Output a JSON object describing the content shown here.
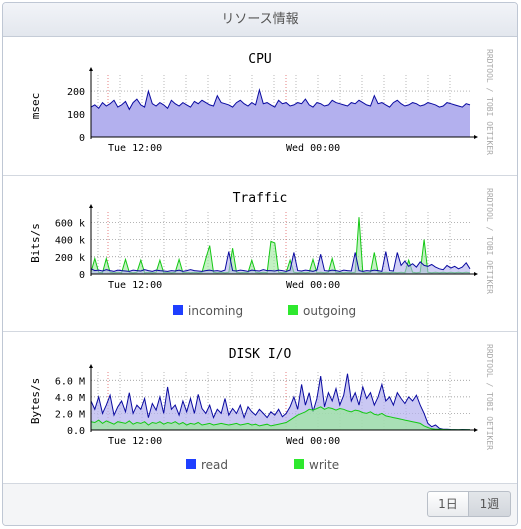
{
  "panel": {
    "title": "リソース情報"
  },
  "watermark": "RRDTOOL / TOBI OETIKER",
  "charts": [
    {
      "id": "cpu",
      "title": "CPU",
      "ylabel": "msec",
      "yticks": [
        "0",
        "100",
        "200"
      ],
      "xticks": [
        "Tue 12:00",
        "Wed 00:00"
      ],
      "legend": []
    },
    {
      "id": "traffic",
      "title": "Traffic",
      "ylabel": "Bits/s",
      "yticks": [
        "0",
        "200 k",
        "400 k",
        "600 k"
      ],
      "xticks": [
        "Tue 12:00",
        "Wed 00:00"
      ],
      "legend": [
        "incoming",
        "outgoing"
      ]
    },
    {
      "id": "disk",
      "title": "DISK I/O",
      "ylabel": "Bytes/s",
      "yticks": [
        "0.0",
        "2.0 M",
        "4.0 M",
        "6.0 M"
      ],
      "xticks": [
        "Tue 12:00",
        "Wed 00:00"
      ],
      "legend": [
        "read",
        "write"
      ]
    }
  ],
  "buttons": {
    "day": "1日",
    "week": "1週",
    "selected": "week"
  },
  "colors": {
    "incoming": "#1f3fff",
    "outgoing": "#2ee82e",
    "read": "#1f3fff",
    "write": "#2ee82e",
    "area": "#b3b0ee",
    "line": "#0a0aa0"
  },
  "chart_data": [
    {
      "type": "area",
      "title": "CPU",
      "ylabel": "msec",
      "ylim": [
        0,
        270
      ],
      "x_ticks": [
        "Tue 12:00",
        "Wed 00:00"
      ],
      "series": [
        {
          "values": [
            130,
            140,
            125,
            150,
            135,
            145,
            160,
            130,
            140,
            155,
            120,
            150,
            165,
            140,
            130,
            200,
            145,
            135,
            150,
            140,
            125,
            160,
            145,
            135,
            150,
            140,
            130,
            155,
            145,
            160,
            150,
            140,
            135,
            180,
            150,
            145,
            140,
            130,
            150,
            160,
            145,
            135,
            150,
            140,
            205,
            145,
            150,
            140,
            130,
            160,
            145,
            150,
            135,
            140,
            150,
            145,
            165,
            140,
            130,
            150,
            145,
            135,
            140,
            160,
            150,
            145,
            140,
            135,
            150,
            145,
            160,
            150,
            140,
            135,
            180,
            145,
            150,
            140,
            130,
            150,
            160,
            145,
            135,
            140,
            150,
            145,
            135,
            140,
            150,
            145,
            140,
            130,
            135,
            150,
            145,
            140,
            135,
            130,
            145,
            140
          ]
        }
      ]
    },
    {
      "type": "line",
      "title": "Traffic",
      "ylabel": "Bits/s",
      "ylim": [
        0,
        720000
      ],
      "x_ticks": [
        "Tue 12:00",
        "Wed 00:00"
      ],
      "series": [
        {
          "name": "incoming",
          "values": [
            60000,
            40000,
            45000,
            35000,
            50000,
            40000,
            30000,
            45000,
            40000,
            35000,
            30000,
            45000,
            40000,
            35000,
            50000,
            40000,
            30000,
            45000,
            40000,
            35000,
            30000,
            40000,
            35000,
            45000,
            30000,
            40000,
            50000,
            40000,
            35000,
            30000,
            40000,
            45000,
            35000,
            40000,
            30000,
            45000,
            260000,
            40000,
            35000,
            45000,
            40000,
            30000,
            45000,
            40000,
            35000,
            50000,
            40000,
            40000,
            35000,
            45000,
            40000,
            30000,
            45000,
            250000,
            40000,
            35000,
            45000,
            40000,
            30000,
            45000,
            230000,
            40000,
            35000,
            45000,
            40000,
            30000,
            45000,
            40000,
            35000,
            250000,
            40000,
            30000,
            40000,
            35000,
            45000,
            40000,
            30000,
            260000,
            40000,
            35000,
            250000,
            100000,
            150000,
            90000,
            120000,
            80000,
            140000,
            100000,
            90000,
            110000,
            80000,
            60000,
            50000,
            100000,
            70000,
            90000,
            60000,
            80000,
            130000,
            60000
          ]
        },
        {
          "name": "outgoing",
          "values": [
            20000,
            180000,
            20000,
            15000,
            180000,
            20000,
            15000,
            20000,
            15000,
            170000,
            20000,
            15000,
            20000,
            160000,
            15000,
            20000,
            15000,
            20000,
            160000,
            15000,
            20000,
            15000,
            20000,
            170000,
            15000,
            20000,
            15000,
            20000,
            15000,
            20000,
            180000,
            330000,
            20000,
            15000,
            20000,
            15000,
            20000,
            300000,
            20000,
            15000,
            20000,
            15000,
            160000,
            20000,
            15000,
            20000,
            15000,
            380000,
            360000,
            20000,
            15000,
            20000,
            160000,
            20000,
            15000,
            20000,
            15000,
            20000,
            170000,
            15000,
            20000,
            15000,
            20000,
            180000,
            15000,
            20000,
            15000,
            20000,
            15000,
            20000,
            660000,
            20000,
            15000,
            20000,
            250000,
            20000,
            15000,
            20000,
            15000,
            20000,
            15000,
            20000,
            15000,
            160000,
            20000,
            15000,
            20000,
            400000,
            20000,
            15000,
            20000,
            15000,
            20000,
            15000,
            20000,
            15000,
            20000,
            15000,
            20000,
            15000
          ]
        }
      ]
    },
    {
      "type": "line",
      "title": "DISK I/O",
      "ylabel": "Bytes/s",
      "ylim": [
        0,
        7000000
      ],
      "x_ticks": [
        "Tue 12:00",
        "Wed 00:00"
      ],
      "series": [
        {
          "name": "read",
          "values": [
            3500000,
            2500000,
            4000000,
            2000000,
            3000000,
            4200000,
            1800000,
            2800000,
            3500000,
            2200000,
            4500000,
            2000000,
            3000000,
            2500000,
            3800000,
            1500000,
            3200000,
            2400000,
            4000000,
            2000000,
            5200000,
            2500000,
            3000000,
            1800000,
            3500000,
            2200000,
            3800000,
            2000000,
            4300000,
            2600000,
            2000000,
            3000000,
            1500000,
            2500000,
            2000000,
            3800000,
            1800000,
            2600000,
            2000000,
            3000000,
            1500000,
            2800000,
            2200000,
            1800000,
            2500000,
            2000000,
            1500000,
            2200000,
            1800000,
            2500000,
            1600000,
            2000000,
            2800000,
            4000000,
            2500000,
            5500000,
            3000000,
            4500000,
            2200000,
            3800000,
            6500000,
            2800000,
            4500000,
            3500000,
            5000000,
            3000000,
            4200000,
            6800000,
            3500000,
            4500000,
            3000000,
            5200000,
            3800000,
            4500000,
            3000000,
            4000000,
            5500000,
            3500000,
            4000000,
            3000000,
            4500000,
            3800000,
            3200000,
            4000000,
            3500000,
            4200000,
            3000000,
            2000000,
            800000,
            400000,
            600000,
            200000,
            100000,
            80000,
            60000,
            50000,
            40000,
            60000,
            50000,
            40000
          ]
        },
        {
          "name": "write",
          "values": [
            1000000,
            900000,
            1200000,
            800000,
            1100000,
            900000,
            700000,
            1000000,
            900000,
            800000,
            1100000,
            700000,
            900000,
            800000,
            1000000,
            600000,
            900000,
            800000,
            1000000,
            700000,
            900000,
            800000,
            1000000,
            700000,
            900000,
            600000,
            800000,
            700000,
            900000,
            600000,
            700000,
            800000,
            600000,
            700000,
            800000,
            700000,
            600000,
            700000,
            800000,
            600000,
            700000,
            800000,
            600000,
            700000,
            500000,
            600000,
            700000,
            500000,
            600000,
            700000,
            800000,
            900000,
            1200000,
            1500000,
            1800000,
            2000000,
            2200000,
            2500000,
            2400000,
            2600000,
            2800000,
            2500000,
            2700000,
            2600000,
            2400000,
            2600000,
            2500000,
            2300000,
            2200000,
            2400000,
            2300000,
            2100000,
            2000000,
            2200000,
            1900000,
            1800000,
            2000000,
            1700000,
            1600000,
            1500000,
            1400000,
            1300000,
            1200000,
            1100000,
            1000000,
            900000,
            800000,
            500000,
            300000,
            150000,
            100000,
            80000,
            60000,
            50000,
            40000,
            30000,
            25000,
            30000,
            25000,
            20000
          ]
        }
      ]
    }
  ]
}
